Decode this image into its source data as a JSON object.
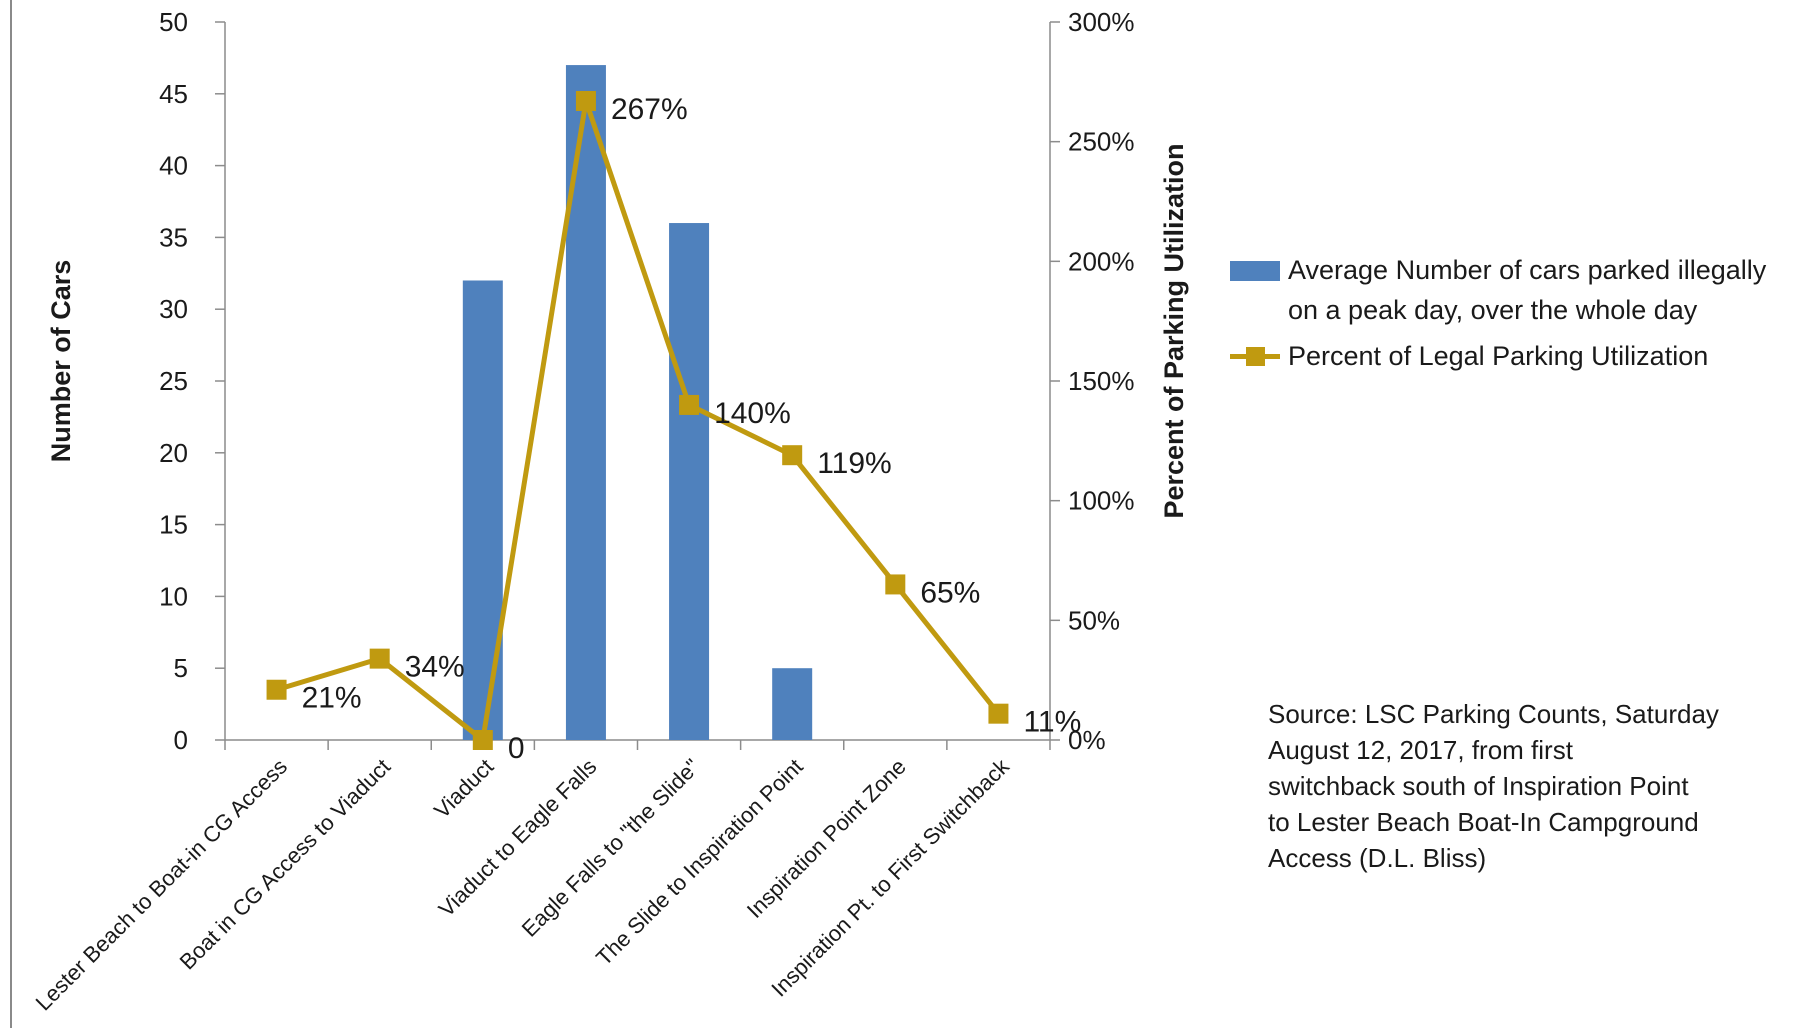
{
  "chart_data": {
    "type": "bar",
    "categories": [
      "Lester Beach to Boat-in CG Access",
      "Boat in CG Access to Viaduct",
      "Viaduct",
      "Viaduct to Eagle Falls",
      "Eagle Falls to \"the Slide\"",
      "The Slide to Inspiration Point",
      "Inspiration Point Zone",
      "Inspiration Pt. to First Switchback"
    ],
    "series": [
      {
        "name": "Average Number of cars parked illegally on a peak day, over the whole day",
        "type": "bar",
        "axis": "left",
        "color": "#4f81bd",
        "values": [
          0,
          0,
          32,
          47,
          36,
          5,
          0,
          0
        ]
      },
      {
        "name": "Percent of Legal Parking Utilization",
        "type": "line",
        "axis": "right",
        "color": "#c09a10",
        "values": [
          21,
          34,
          0,
          267,
          140,
          119,
          65,
          11
        ],
        "data_labels": [
          "21%",
          "34%",
          "0",
          "267%",
          "140%",
          "119%",
          "65%",
          "11%"
        ]
      }
    ],
    "ylabel": "Number of Cars",
    "y2label": "Percent of Parking Utilization",
    "ylim": [
      0,
      50
    ],
    "y2lim": [
      0,
      300
    ],
    "yticks": [
      "0",
      "5",
      "10",
      "15",
      "20",
      "25",
      "30",
      "35",
      "40",
      "45",
      "50"
    ],
    "y2ticks": [
      "0%",
      "50%",
      "100%",
      "150%",
      "200%",
      "250%",
      "300%"
    ],
    "grid": false,
    "legend_position": "right"
  },
  "legend": {
    "bar_label_line1": "Average Number of cars parked illegally",
    "bar_label_line2": "on a peak day, over the whole day",
    "line_label": "Percent of Legal Parking Utilization"
  },
  "source_note": {
    "lines": [
      "Source: LSC Parking Counts, Saturday",
      "August 12, 2017, from first",
      "switchback south of Inspiration Point",
      "to Lester Beach Boat-In Campground",
      "Access (D.L. Bliss)"
    ]
  }
}
